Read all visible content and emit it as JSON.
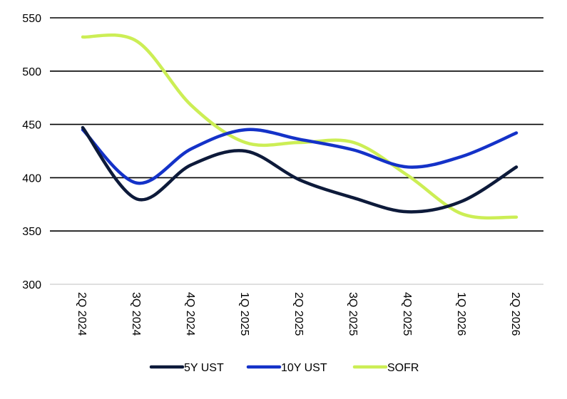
{
  "chart_data": {
    "type": "line",
    "categories": [
      "2Q 2024",
      "3Q 2024",
      "4Q 2024",
      "1Q 2025",
      "2Q 2025",
      "3Q 2025",
      "4Q 2025",
      "1Q 2026",
      "2Q 2026"
    ],
    "series": [
      {
        "name": "5Y UST",
        "color": "#0d1a3a",
        "values": [
          447,
          380,
          412,
          425,
          398,
          381,
          368,
          378,
          410
        ]
      },
      {
        "name": "10Y UST",
        "color": "#1432c8",
        "values": [
          445,
          395,
          427,
          445,
          436,
          426,
          410,
          420,
          442
        ]
      },
      {
        "name": "SOFR",
        "color": "#ccee55",
        "values": [
          532,
          528,
          468,
          433,
          433,
          433,
          402,
          366,
          363
        ]
      }
    ],
    "ylim": [
      300,
      550
    ],
    "yticks": [
      300,
      350,
      400,
      450,
      500,
      550
    ],
    "grid": true,
    "legend": "bottom",
    "smooth": true
  }
}
